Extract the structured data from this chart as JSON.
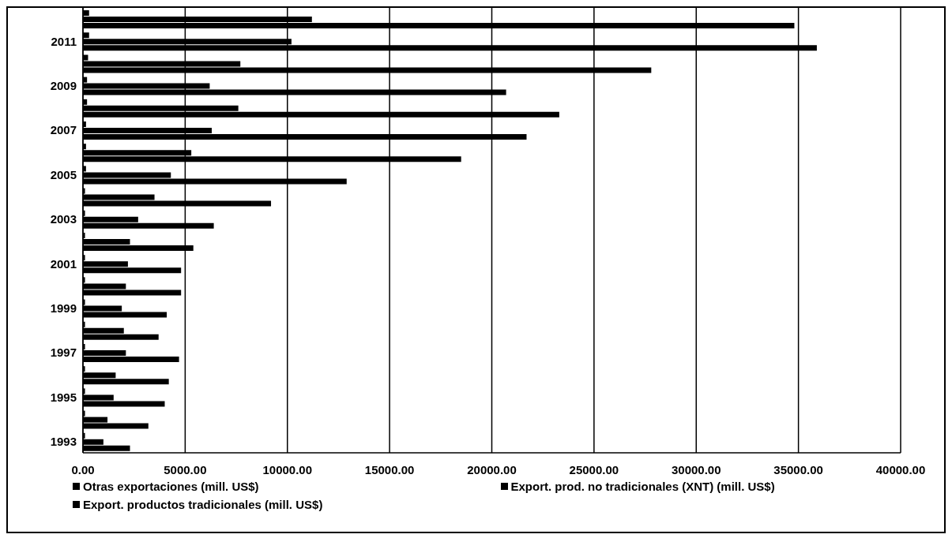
{
  "chart_data": {
    "type": "bar",
    "orientation": "horizontal",
    "categories": [
      null,
      "2011",
      null,
      "2009",
      null,
      "2007",
      null,
      "2005",
      null,
      "2003",
      null,
      "2001",
      null,
      "1999",
      null,
      "1997",
      null,
      "1995",
      null,
      "1993"
    ],
    "series": [
      {
        "name": "Otras exportaciones (mill. US$)",
        "color": "#000000",
        "values": [
          300,
          300,
          250,
          200,
          200,
          150,
          150,
          150,
          100,
          100,
          100,
          100,
          100,
          100,
          100,
          100,
          100,
          100,
          100,
          100
        ]
      },
      {
        "name": "Export. prod. no tradicionales (XNT) (mill. US$)",
        "color": "#000000",
        "values": [
          11200,
          10200,
          7700,
          6200,
          7600,
          6300,
          5300,
          4300,
          3500,
          2700,
          2300,
          2200,
          2100,
          1900,
          2000,
          2100,
          1600,
          1500,
          1200,
          1000
        ]
      },
      {
        "name": "Export. productos tradicionales (mill. US$)",
        "color": "#000000",
        "values": [
          34800,
          35900,
          27800,
          20700,
          23300,
          21700,
          18500,
          12900,
          9200,
          6400,
          5400,
          4800,
          4800,
          4100,
          3700,
          4700,
          4200,
          4000,
          3200,
          2300
        ]
      }
    ],
    "xlim": [
      0,
      40000
    ],
    "xticks": [
      {
        "value": 0,
        "label": "0.00"
      },
      {
        "value": 5000,
        "label": "5000.00"
      },
      {
        "value": 10000,
        "label": "10000.00"
      },
      {
        "value": 15000,
        "label": "15000.00"
      },
      {
        "value": 20000,
        "label": "20000.00"
      },
      {
        "value": 25000,
        "label": "25000.00"
      },
      {
        "value": 30000,
        "label": "30000.00"
      },
      {
        "value": 35000,
        "label": "35000.00"
      },
      {
        "value": 40000,
        "label": "40000.00"
      }
    ],
    "grid": "x",
    "legend": "bottom"
  }
}
